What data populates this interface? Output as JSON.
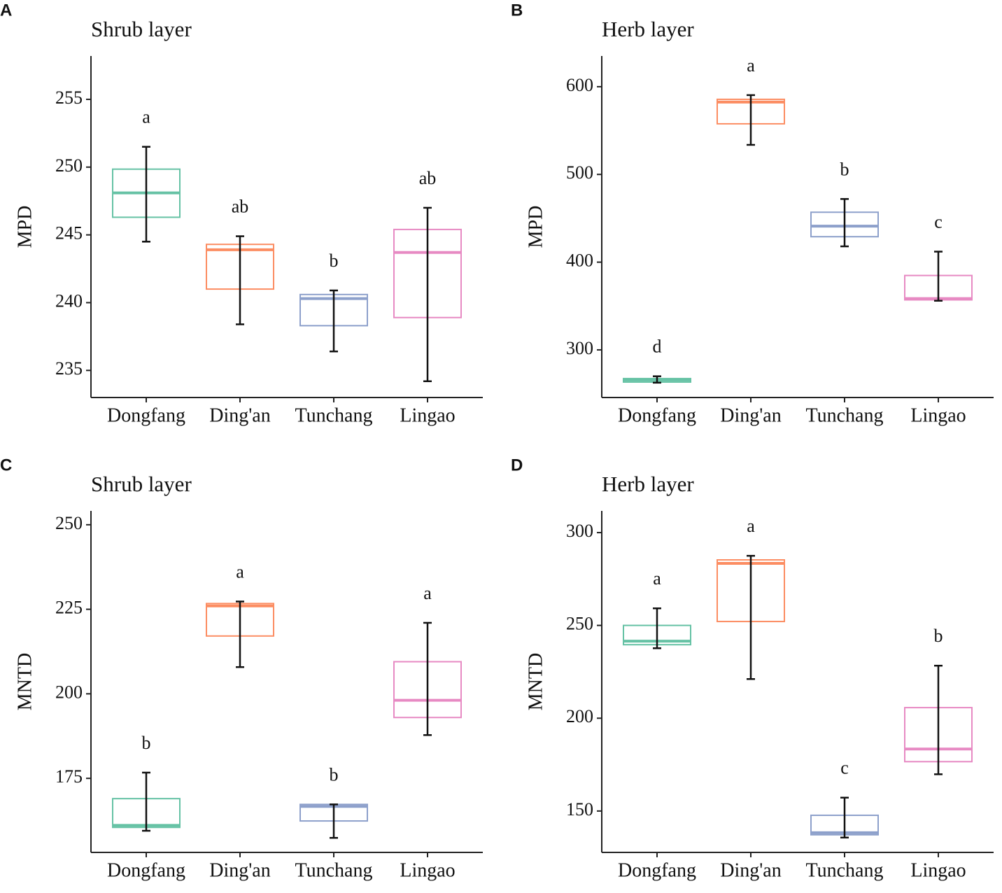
{
  "chart_data": [
    {
      "type": "box",
      "panel_label": "A",
      "title": "Shrub layer",
      "y_label": "MPD",
      "categories": [
        "Dongfang",
        "Ding'an",
        "Tunchang",
        "Lingao"
      ],
      "colors": [
        "#66c2a5",
        "#fc8d62",
        "#8da0cb",
        "#e78ac3"
      ],
      "q1": [
        246.3,
        241.0,
        238.3,
        238.9
      ],
      "median": [
        248.1,
        243.9,
        240.3,
        243.7
      ],
      "q3": [
        249.85,
        244.3,
        240.6,
        245.4
      ],
      "whisker_low": [
        244.5,
        238.4,
        236.4,
        234.2
      ],
      "whisker_high": [
        251.5,
        244.9,
        240.9,
        247.0
      ],
      "letters": [
        "a",
        "ab",
        "b",
        "ab"
      ],
      "ylim": [
        233.0,
        258.2
      ],
      "yticks": [
        235,
        240,
        245,
        250,
        255
      ]
    },
    {
      "type": "box",
      "panel_label": "B",
      "title": "Herb layer",
      "y_label": "MPD",
      "categories": [
        "Dongfang",
        "Ding'an",
        "Tunchang",
        "Lingao"
      ],
      "colors": [
        "#66c2a5",
        "#fc8d62",
        "#8da0cb",
        "#e78ac3"
      ],
      "q1": [
        263.3,
        557.7,
        429,
        357
      ],
      "median": [
        265.7,
        582.4,
        441,
        358.5
      ],
      "q3": [
        267.3,
        585.6,
        456.9,
        384.8
      ],
      "whisker_low": [
        262.6,
        533.7,
        418,
        356
      ],
      "whisker_high": [
        269.9,
        590.4,
        472,
        412
      ],
      "letters": [
        "d",
        "a",
        "b",
        "c"
      ],
      "ylim": [
        245.7,
        635
      ],
      "yticks": [
        300,
        400,
        500,
        600
      ]
    },
    {
      "type": "box",
      "panel_label": "C",
      "title": "Shrub layer",
      "y_label": "MNTD",
      "categories": [
        "Dongfang",
        "Ding'an",
        "Tunchang",
        "Lingao"
      ],
      "colors": [
        "#66c2a5",
        "#fc8d62",
        "#8da0cb",
        "#e78ac3"
      ],
      "q1": [
        160.5,
        217.1,
        162.4,
        193.0
      ],
      "median": [
        161.1,
        226.0,
        166.7,
        198.1
      ],
      "q3": [
        169.0,
        226.7,
        167.3,
        209.5
      ],
      "whisker_low": [
        159.5,
        207.9,
        157.4,
        187.8
      ],
      "whisker_high": [
        176.7,
        227.3,
        167.3,
        221.0
      ],
      "letters": [
        "b",
        "a",
        "b",
        "a"
      ],
      "ylim": [
        153.1,
        254.1
      ],
      "yticks": [
        175,
        200,
        225,
        250
      ]
    },
    {
      "type": "box",
      "panel_label": "D",
      "title": "Herb layer",
      "y_label": "MNTD",
      "categories": [
        "Dongfang",
        "Ding'an",
        "Tunchang",
        "Lingao"
      ],
      "colors": [
        "#66c2a5",
        "#fc8d62",
        "#8da0cb",
        "#e78ac3"
      ],
      "q1": [
        239.6,
        252.1,
        137.2,
        176.6
      ],
      "median": [
        241.5,
        283.4,
        138.3,
        183.4
      ],
      "q3": [
        250,
        285.3,
        147.7,
        205.7
      ],
      "whisker_low": [
        237.7,
        221.1,
        135.7,
        169.8
      ],
      "whisker_high": [
        259.2,
        287.5,
        157.2,
        228.3
      ],
      "letters": [
        "a",
        "a",
        "c",
        "b"
      ],
      "ylim": [
        127.7,
        311.7
      ],
      "yticks": [
        150,
        200,
        250,
        300
      ]
    }
  ]
}
